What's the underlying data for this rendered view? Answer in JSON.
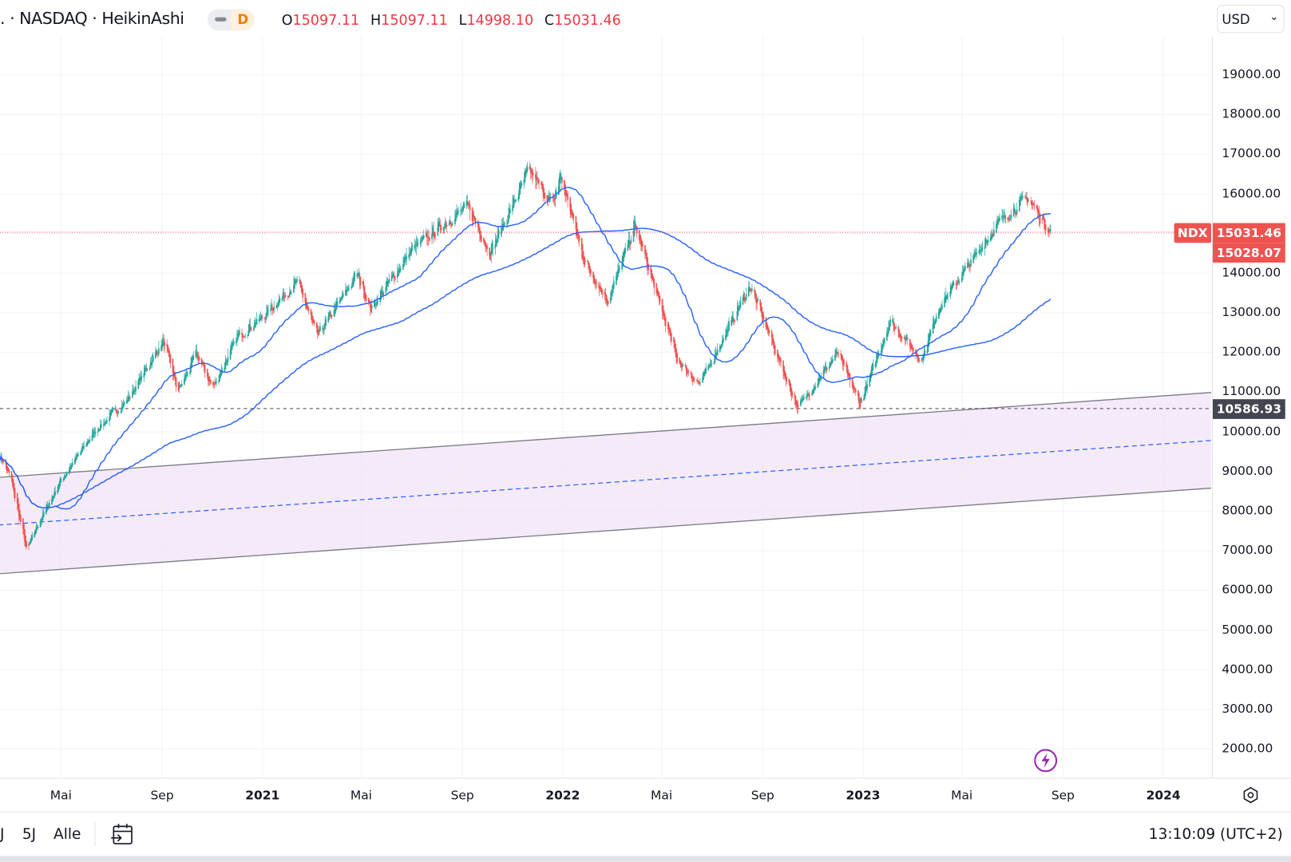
{
  "header": {
    "symbol_text": ". · NASDAQ · HeikinAshi",
    "interval": "D",
    "ohlc": [
      {
        "key": "O",
        "value": "15097.11"
      },
      {
        "key": "H",
        "value": "15097.11"
      },
      {
        "key": "L",
        "value": "14998.10"
      },
      {
        "key": "C",
        "value": "15031.46"
      }
    ],
    "currency": "USD"
  },
  "price_axis": {
    "labels": [
      "19000.00",
      "18000.00",
      "17000.00",
      "16000.00",
      "14000.00",
      "13000.00",
      "12000.00",
      "11000.00",
      "10000.00",
      "9000.00",
      "8000.00",
      "7000.00",
      "6000.00",
      "5000.00",
      "4000.00",
      "3000.00",
      "2000.00"
    ],
    "symbol_badge": "NDX",
    "last_price": "15031.46",
    "second_price": "15028.07",
    "hline_price": "10586.93"
  },
  "time_axis": {
    "ticks": [
      {
        "label": "Mai",
        "year": false
      },
      {
        "label": "Sep",
        "year": false
      },
      {
        "label": "2021",
        "year": true
      },
      {
        "label": "Mai",
        "year": false
      },
      {
        "label": "Sep",
        "year": false
      },
      {
        "label": "2022",
        "year": true
      },
      {
        "label": "Mai",
        "year": false
      },
      {
        "label": "Sep",
        "year": false
      },
      {
        "label": "2023",
        "year": true
      },
      {
        "label": "Mai",
        "year": false
      },
      {
        "label": "Sep",
        "year": false
      },
      {
        "label": "2024",
        "year": true
      }
    ]
  },
  "bottom_bar": {
    "ranges": [
      "J",
      "5J",
      "Alle"
    ],
    "clock": "13:10:09 (UTC+2)"
  },
  "colors": {
    "up": "#26a69a",
    "down": "#ef5350",
    "ma": "#2962ff",
    "channel_fill": "#f3e5f5",
    "price_line": "#f23645",
    "hline_badge": "#434651"
  },
  "chart_data": {
    "type": "candlestick",
    "style": "HeikinAshi",
    "y_range": [
      1500,
      19600
    ],
    "grid": true,
    "price_path": [
      [
        "2020-02-15",
        9500
      ],
      [
        "2020-03-01",
        8800
      ],
      [
        "2020-03-20",
        7000
      ],
      [
        "2020-04-01",
        7600
      ],
      [
        "2020-05-01",
        8800
      ],
      [
        "2020-06-10",
        10000
      ],
      [
        "2020-07-20",
        10800
      ],
      [
        "2020-09-02",
        12300
      ],
      [
        "2020-09-20",
        11000
      ],
      [
        "2020-10-12",
        12000
      ],
      [
        "2020-11-01",
        11100
      ],
      [
        "2020-12-01",
        12400
      ],
      [
        "2021-01-01",
        12900
      ],
      [
        "2021-02-12",
        13800
      ],
      [
        "2021-03-08",
        12400
      ],
      [
        "2021-04-26",
        14000
      ],
      [
        "2021-05-12",
        13100
      ],
      [
        "2021-07-01",
        14600
      ],
      [
        "2021-09-07",
        15700
      ],
      [
        "2021-10-04",
        14500
      ],
      [
        "2021-11-20",
        16600
      ],
      [
        "2021-12-20",
        15700
      ],
      [
        "2021-12-28",
        16500
      ],
      [
        "2022-01-27",
        14300
      ],
      [
        "2022-02-24",
        13300
      ],
      [
        "2022-03-29",
        15200
      ],
      [
        "2022-05-20",
        11800
      ],
      [
        "2022-06-16",
        11200
      ],
      [
        "2022-08-16",
        13700
      ],
      [
        "2022-10-13",
        10600
      ],
      [
        "2022-11-30",
        12000
      ],
      [
        "2022-12-28",
        10700
      ],
      [
        "2023-02-02",
        12800
      ],
      [
        "2023-03-13",
        11800
      ],
      [
        "2023-04-01",
        13100
      ],
      [
        "2023-06-15",
        15300
      ],
      [
        "2023-07-19",
        15900
      ],
      [
        "2023-08-17",
        15031
      ]
    ],
    "moving_averages": [
      50,
      200
    ],
    "channel": {
      "upper": [
        [
          "2020-02-15",
          8850
        ],
        [
          "2024-02-28",
          10990
        ]
      ],
      "middle": [
        [
          "2020-02-15",
          7650
        ],
        [
          "2024-02-28",
          9780
        ]
      ],
      "lower": [
        [
          "2020-02-15",
          6420
        ],
        [
          "2024-02-28",
          8580
        ]
      ]
    },
    "horizontal_line": 10586.93,
    "last_price": 15031.46
  }
}
